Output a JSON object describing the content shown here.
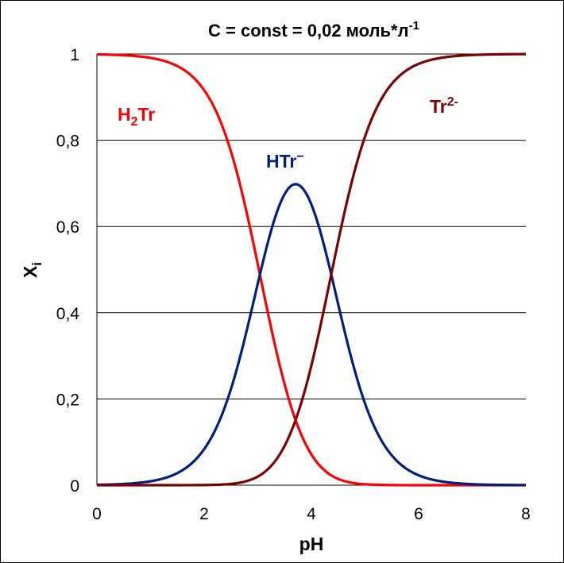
{
  "chart_data": {
    "type": "line",
    "title": "C = const = 0,02 моль*л",
    "title_superscript": "-1",
    "xlabel": "pH",
    "ylabel": "X",
    "ylabel_subscript": "i",
    "xlim": [
      0,
      8
    ],
    "ylim": [
      0,
      1
    ],
    "x_ticks": [
      "0",
      "2",
      "4",
      "6",
      "8"
    ],
    "y_ticks": [
      "0",
      "0,2",
      "0,4",
      "0,6",
      "0,8",
      "1"
    ],
    "grid": "horizontal",
    "pKa1": 3.04,
    "pKa2": 4.37,
    "series": [
      {
        "name": "H2Tr",
        "label_main": "H",
        "label_sub": "2",
        "label_tail": "Tr",
        "color": "#ff0000",
        "x": [
          0,
          0.5,
          1,
          1.5,
          2,
          2.5,
          3,
          3.5,
          4,
          4.5,
          5,
          5.5,
          6,
          6.5,
          7,
          7.5,
          8
        ],
        "values": [
          0.999,
          0.997,
          0.989,
          0.965,
          0.892,
          0.717,
          0.505,
          0.198,
          0.063,
          0.015,
          0.003,
          0.001,
          0,
          0,
          0,
          0,
          0
        ]
      },
      {
        "name": "HTr",
        "label_main": "HTr",
        "label_sup": "−",
        "color": "#001f7f",
        "x": [
          0,
          0.5,
          1,
          1.5,
          2,
          2.5,
          3,
          3.5,
          4,
          4.5,
          5,
          5.5,
          6,
          6.5,
          7,
          7.5,
          8
        ],
        "values": [
          0.001,
          0.003,
          0.009,
          0.028,
          0.088,
          0.221,
          0.48,
          0.694,
          0.574,
          0.358,
          0.163,
          0.062,
          0.022,
          0.007,
          0.002,
          0.001,
          0
        ]
      },
      {
        "name": "Tr2-",
        "label_main": "Tr",
        "label_sup": "2-",
        "color": "#7f0000",
        "x": [
          0,
          0.5,
          1,
          1.5,
          2,
          2.5,
          3,
          3.5,
          4,
          4.5,
          5,
          5.5,
          6,
          6.5,
          7,
          7.5,
          8
        ],
        "values": [
          0,
          0,
          0,
          0,
          0.001,
          0.005,
          0.015,
          0.108,
          0.363,
          0.627,
          0.834,
          0.937,
          0.978,
          0.993,
          0.998,
          0.999,
          1
        ]
      }
    ]
  }
}
